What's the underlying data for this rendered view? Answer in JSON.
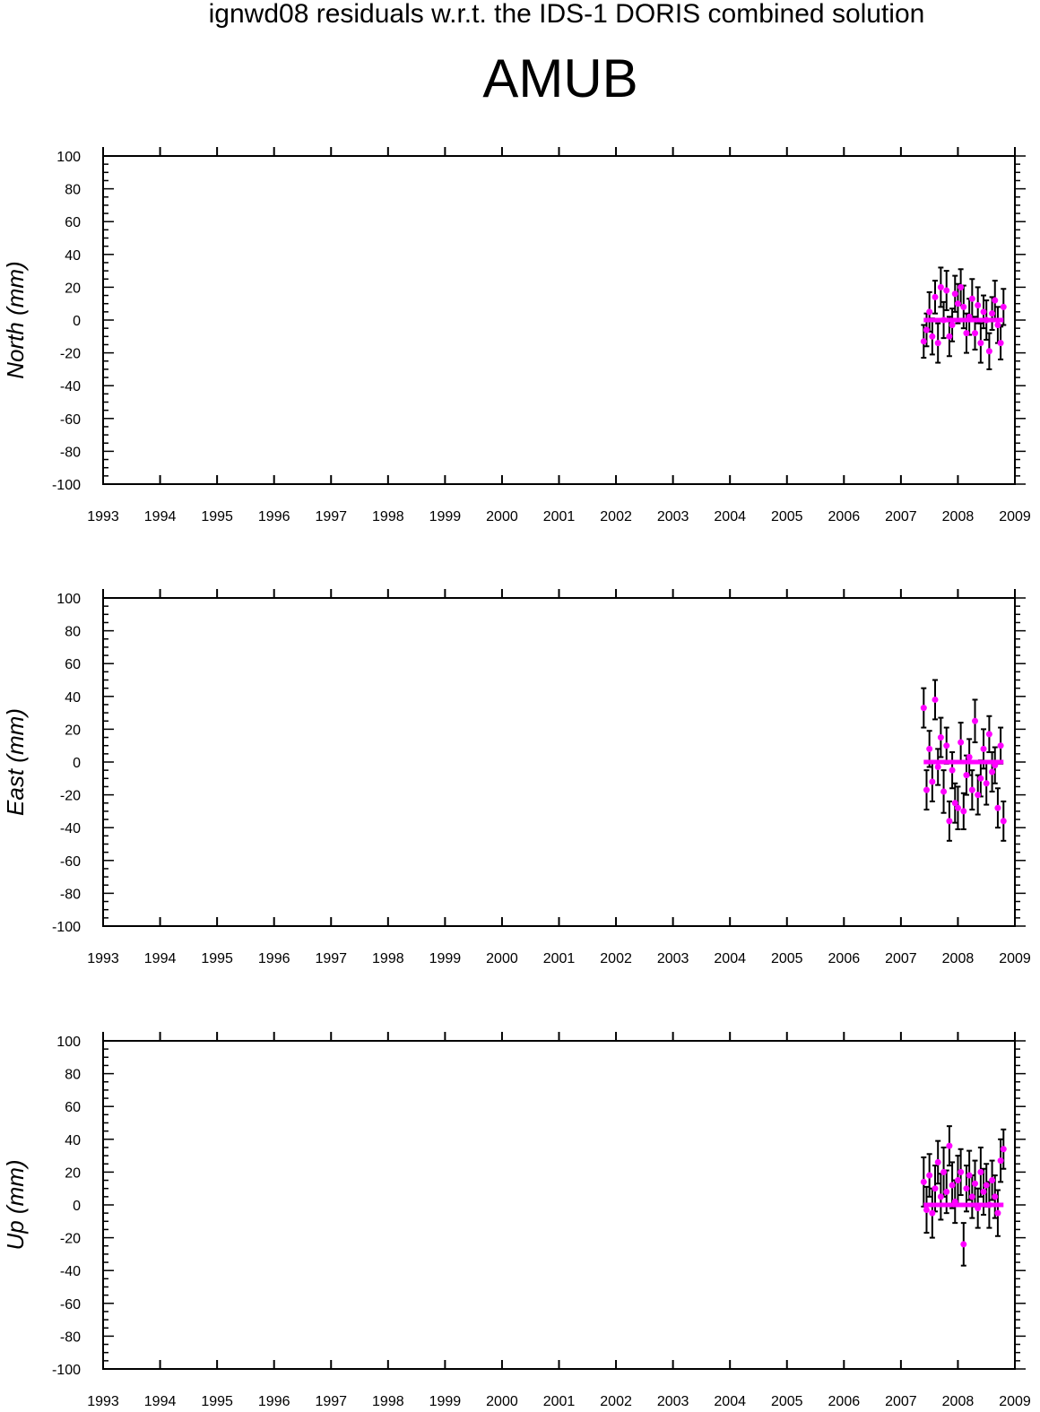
{
  "figure": {
    "suptitle": "ignwd08 residuals w.r.t. the IDS-1 DORIS combined solution",
    "station": "AMUB"
  },
  "colors": {
    "point": "#ff00ff",
    "errorbar": "#000000",
    "axis": "#000000"
  },
  "chart_data": [
    {
      "type": "scatter",
      "ylabel": "North (mm)",
      "xlim": [
        1993,
        2009
      ],
      "ylim": [
        -100,
        100
      ],
      "xticks": [
        "1993",
        "1994",
        "1995",
        "1996",
        "1997",
        "1998",
        "1999",
        "2000",
        "2001",
        "2002",
        "2003",
        "2004",
        "2005",
        "2006",
        "2007",
        "2008",
        "2009"
      ],
      "yticks": [
        "100",
        "80",
        "60",
        "40",
        "20",
        "0",
        "-20",
        "-40",
        "-60",
        "-80",
        "-100"
      ],
      "x": [
        2007.4,
        2007.45,
        2007.5,
        2007.55,
        2007.6,
        2007.65,
        2007.7,
        2007.75,
        2007.8,
        2007.85,
        2007.9,
        2007.95,
        2008.0,
        2008.05,
        2008.1,
        2008.15,
        2008.2,
        2008.25,
        2008.3,
        2008.35,
        2008.4,
        2008.45,
        2008.5,
        2008.55,
        2008.6,
        2008.65,
        2008.7,
        2008.75,
        2008.8
      ],
      "y": [
        -13,
        -6,
        5,
        -10,
        14,
        -14,
        20,
        0,
        18,
        -10,
        -3,
        16,
        10,
        20,
        8,
        -8,
        2,
        13,
        -8,
        9,
        -14,
        5,
        0,
        -19,
        4,
        12,
        -3,
        -14,
        8
      ],
      "err": [
        10,
        10,
        12,
        11,
        10,
        12,
        12,
        11,
        12,
        12,
        10,
        11,
        12,
        11,
        13,
        12,
        11,
        12,
        10,
        11,
        12,
        10,
        12,
        11,
        10,
        12,
        11,
        10,
        11
      ],
      "trend": {
        "x": [
          2007.4,
          2008.8
        ],
        "y": [
          0,
          0
        ]
      }
    },
    {
      "type": "scatter",
      "ylabel": "East (mm)",
      "xlim": [
        1993,
        2009
      ],
      "ylim": [
        -100,
        100
      ],
      "xticks": [
        "1993",
        "1994",
        "1995",
        "1996",
        "1997",
        "1998",
        "1999",
        "2000",
        "2001",
        "2002",
        "2003",
        "2004",
        "2005",
        "2006",
        "2007",
        "2008",
        "2009"
      ],
      "yticks": [
        "100",
        "80",
        "60",
        "40",
        "20",
        "0",
        "-20",
        "-40",
        "-60",
        "-80",
        "-100"
      ],
      "x": [
        2007.4,
        2007.45,
        2007.5,
        2007.55,
        2007.6,
        2007.65,
        2007.7,
        2007.75,
        2007.8,
        2007.85,
        2007.9,
        2007.95,
        2008.0,
        2008.05,
        2008.1,
        2008.15,
        2008.2,
        2008.25,
        2008.3,
        2008.35,
        2008.4,
        2008.45,
        2008.5,
        2008.55,
        2008.6,
        2008.65,
        2008.7,
        2008.75,
        2008.8
      ],
      "y": [
        33,
        -17,
        8,
        -12,
        38,
        -3,
        15,
        -18,
        10,
        -36,
        -5,
        -25,
        -28,
        12,
        -30,
        -8,
        3,
        -17,
        25,
        -20,
        -10,
        8,
        -13,
        17,
        -6,
        -2,
        -28,
        10,
        -36
      ],
      "err": [
        12,
        12,
        11,
        12,
        12,
        11,
        12,
        13,
        11,
        12,
        11,
        12,
        13,
        12,
        11,
        12,
        11,
        12,
        13,
        12,
        11,
        12,
        13,
        11,
        12,
        11,
        12,
        11,
        12
      ],
      "trend": {
        "x": [
          2007.4,
          2008.8
        ],
        "y": [
          0,
          0
        ]
      }
    },
    {
      "type": "scatter",
      "ylabel": "Up (mm)",
      "xlim": [
        1993,
        2009
      ],
      "ylim": [
        -100,
        100
      ],
      "xticks": [
        "1993",
        "1994",
        "1995",
        "1996",
        "1997",
        "1998",
        "1999",
        "2000",
        "2001",
        "2002",
        "2003",
        "2004",
        "2005",
        "2006",
        "2007",
        "2008",
        "2009"
      ],
      "yticks": [
        "100",
        "80",
        "60",
        "40",
        "20",
        "0",
        "-20",
        "-40",
        "-60",
        "-80",
        "-100"
      ],
      "x": [
        2007.4,
        2007.45,
        2007.5,
        2007.55,
        2007.6,
        2007.65,
        2007.7,
        2007.75,
        2007.8,
        2007.85,
        2007.9,
        2007.95,
        2008.0,
        2008.05,
        2008.1,
        2008.15,
        2008.2,
        2008.25,
        2008.3,
        2008.35,
        2008.4,
        2008.45,
        2008.5,
        2008.55,
        2008.6,
        2008.65,
        2008.7,
        2008.75,
        2008.8
      ],
      "y": [
        14,
        -3,
        18,
        -5,
        10,
        26,
        5,
        20,
        8,
        36,
        12,
        2,
        15,
        20,
        -24,
        10,
        18,
        5,
        13,
        -2,
        20,
        8,
        12,
        0,
        15,
        5,
        -5,
        27,
        34
      ],
      "err": [
        15,
        14,
        13,
        15,
        14,
        13,
        14,
        15,
        13,
        12,
        14,
        13,
        15,
        14,
        13,
        14,
        15,
        13,
        14,
        12,
        15,
        14,
        13,
        14,
        12,
        13,
        14,
        13,
        12
      ],
      "trend": {
        "x": [
          2007.4,
          2008.8
        ],
        "y": [
          0,
          0
        ]
      }
    }
  ]
}
